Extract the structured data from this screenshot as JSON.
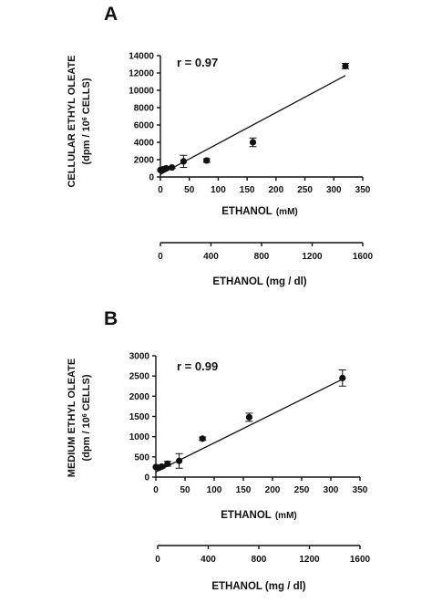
{
  "chart_data": [
    {
      "type": "scatter",
      "panel_label": "A",
      "annotation": "r = 0.97",
      "ylabel_line1": "CELLULAR ETHYL OLEATE",
      "ylabel_line2_pre": "(dpm / 10",
      "ylabel_sup": "6",
      "ylabel_line2_post": " CELLS)",
      "xlabel_main": "ETHANOL",
      "xlabel_unit": "(mM)",
      "xlim": [
        0,
        350
      ],
      "x_ticks": [
        "0",
        "50",
        "100",
        "150",
        "200",
        "250",
        "300",
        "350"
      ],
      "ylim": [
        0,
        14000
      ],
      "y_ticks": [
        "0",
        "2000",
        "4000",
        "6000",
        "8000",
        "10000",
        "12000",
        "14000"
      ],
      "secondary_xlabel": "ETHANOL (mg / dl)",
      "secondary_ticks": [
        "0",
        "400",
        "800",
        "1200",
        "1600"
      ],
      "series": [
        {
          "x": [
            0,
            5,
            10,
            20,
            40,
            80,
            160,
            320
          ],
          "y": [
            800,
            900,
            1000,
            1100,
            1800,
            1900,
            4000,
            12800
          ],
          "err": [
            0,
            100,
            100,
            100,
            700,
            200,
            500,
            300
          ]
        }
      ],
      "fit_line": {
        "x": [
          0,
          320
        ],
        "y": [
          300,
          11700
        ]
      }
    },
    {
      "type": "scatter",
      "panel_label": "B",
      "annotation": "r = 0.99",
      "ylabel_line1": "MEDIUM ETHYL OLEATE",
      "ylabel_line2_pre": "(dpm / 10",
      "ylabel_sup": "6",
      "ylabel_line2_post": " CELLS)",
      "xlabel_main": "ETHANOL",
      "xlabel_unit": "(mM)",
      "xlim": [
        0,
        350
      ],
      "x_ticks": [
        "0",
        "50",
        "100",
        "150",
        "200",
        "250",
        "300",
        "350"
      ],
      "ylim": [
        0,
        3000
      ],
      "y_ticks": [
        "0",
        "500",
        "1000",
        "1500",
        "2000",
        "2500",
        "3000"
      ],
      "secondary_xlabel": "ETHANOL (mg / dl)",
      "secondary_ticks": [
        "0",
        "400",
        "800",
        "1200",
        "1600"
      ],
      "series": [
        {
          "x": [
            0,
            5,
            10,
            20,
            40,
            80,
            160,
            320
          ],
          "y": [
            250,
            230,
            260,
            330,
            400,
            950,
            1480,
            2450
          ],
          "err": [
            0,
            30,
            40,
            60,
            180,
            40,
            100,
            200
          ]
        }
      ],
      "fit_line": {
        "x": [
          0,
          320
        ],
        "y": [
          130,
          2420
        ]
      }
    }
  ]
}
